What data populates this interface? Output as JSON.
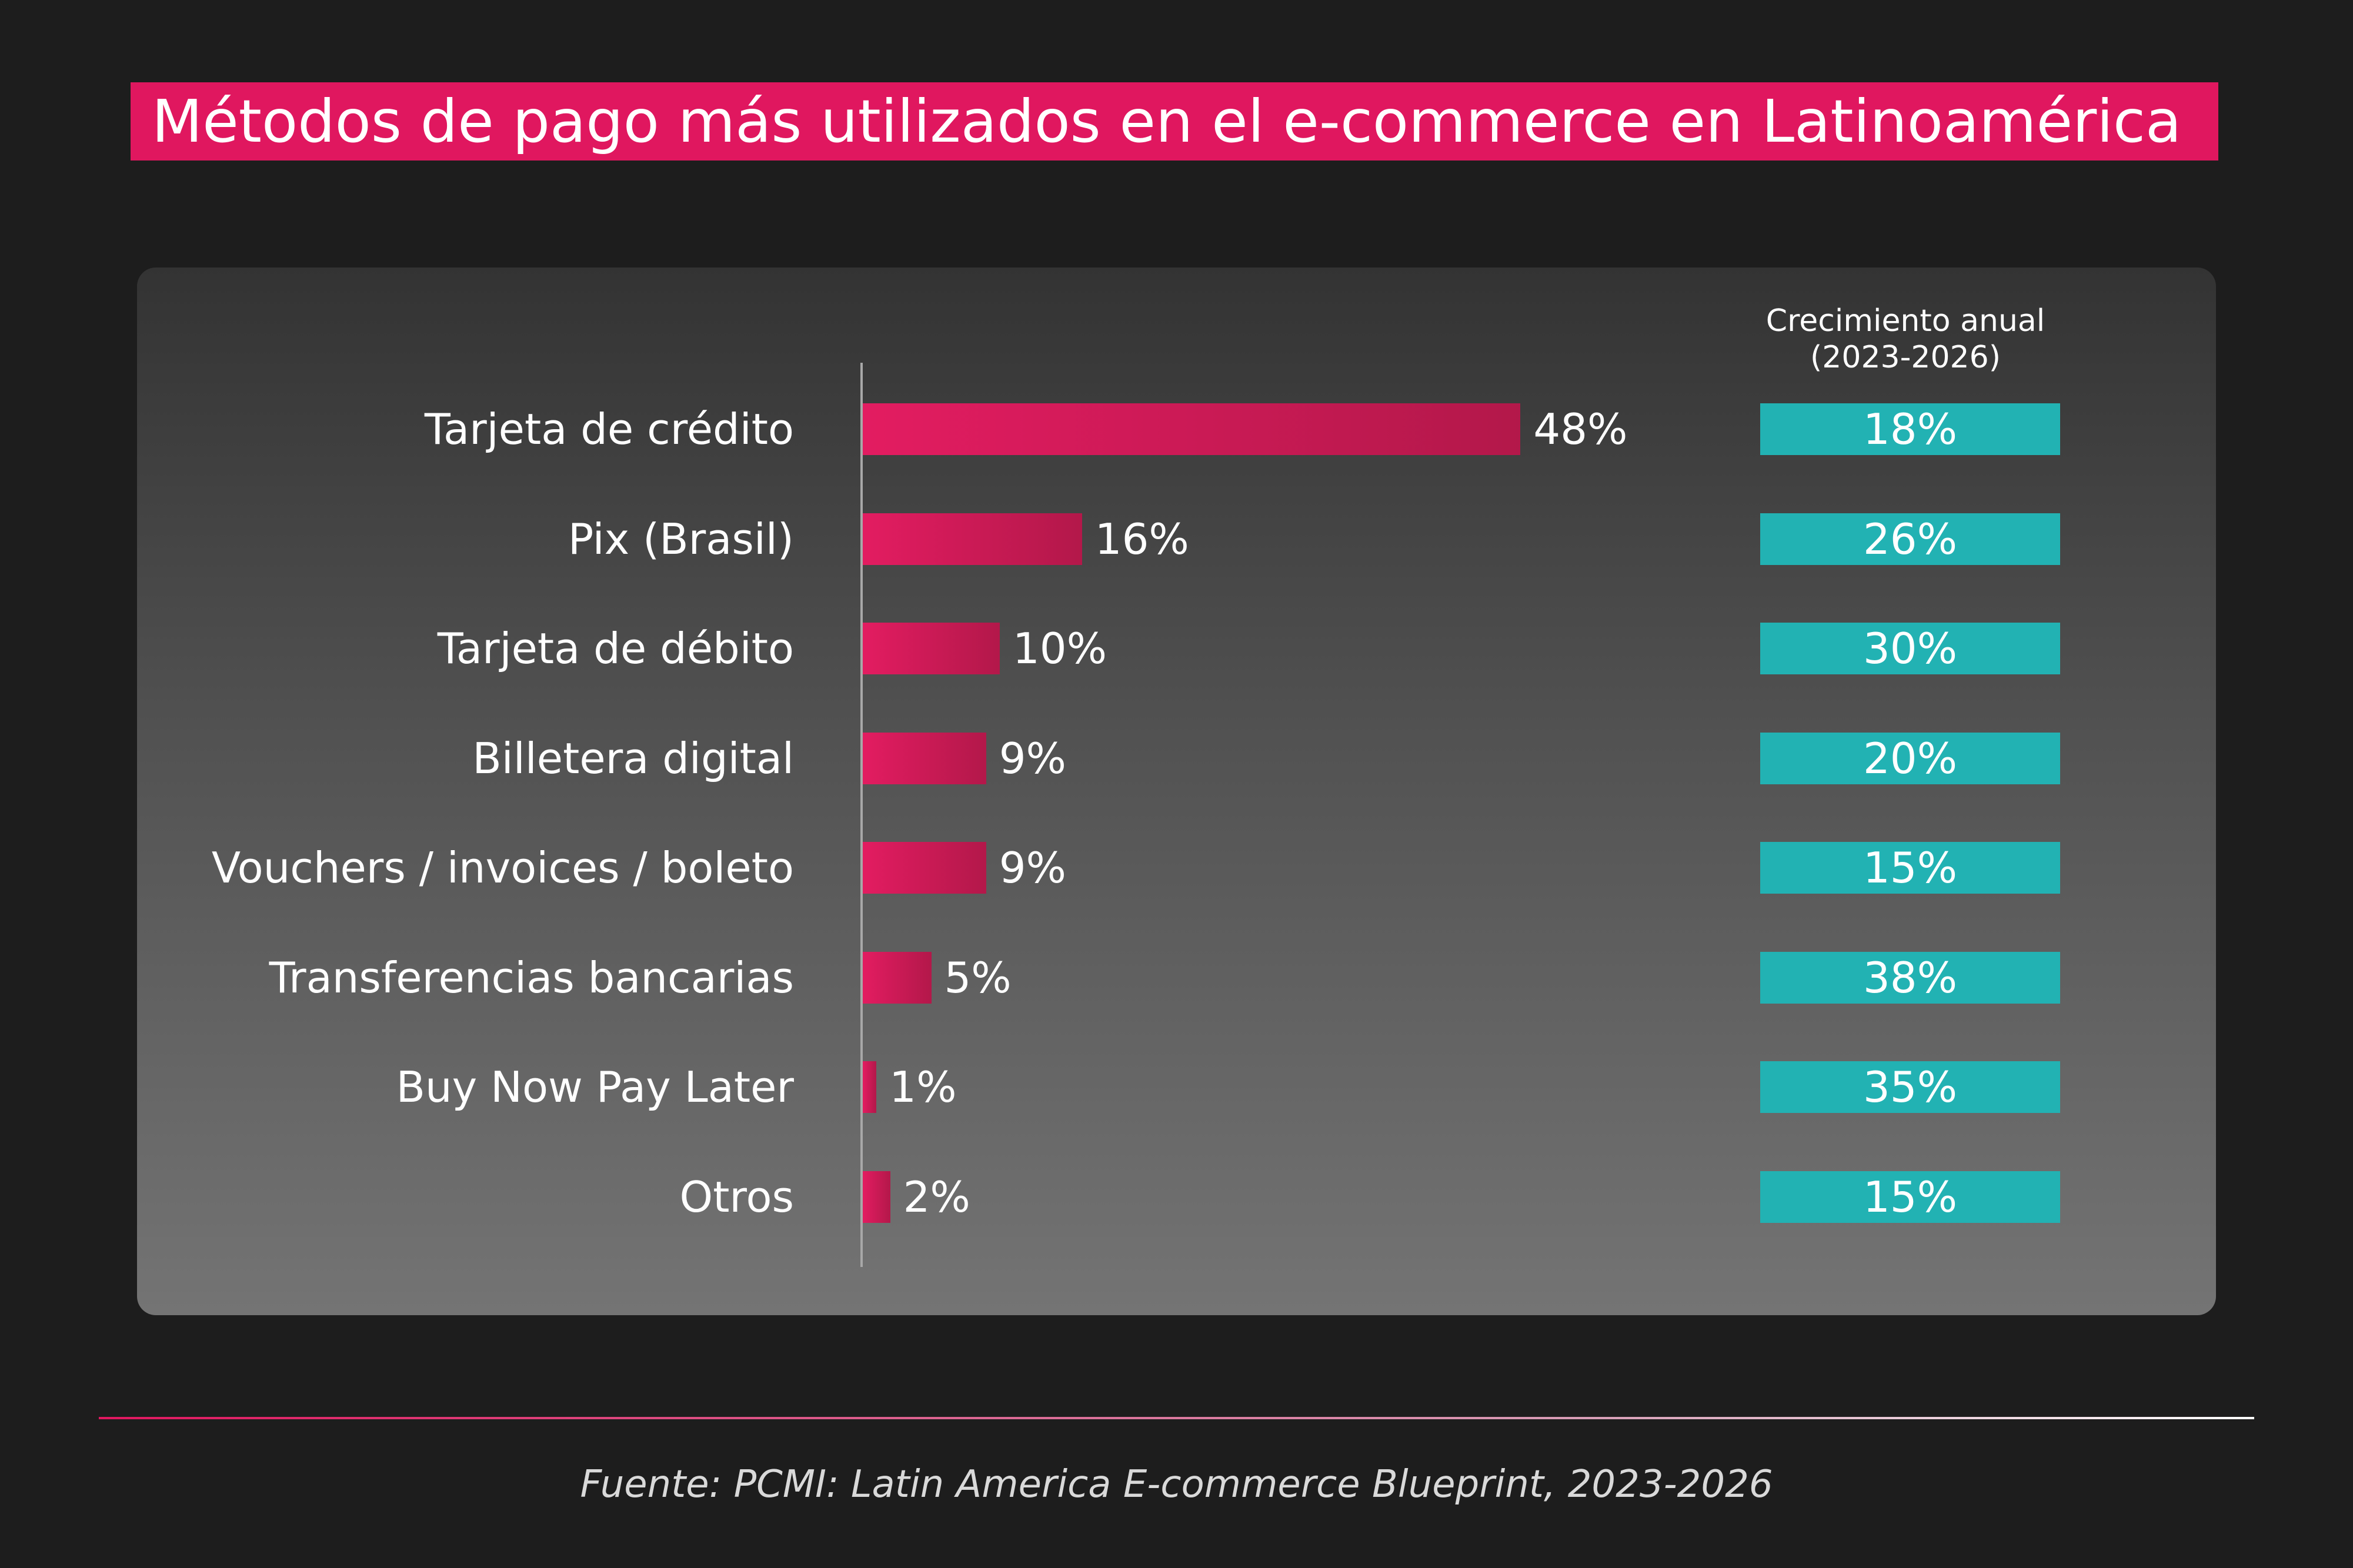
{
  "title": "Métodos de pago más utilizados en el e-commerce en Latinoamérica",
  "growth_header": {
    "line1": "Crecimiento anual",
    "line2": "(2023-2026)"
  },
  "source": "Fuente: PCMI: Latin America E-commerce Blueprint, 2023-2026",
  "colors": {
    "title_bg": "#e0175f",
    "bar": "#d01a58",
    "growth_box": "#22b2b3",
    "background": "#1d1d1d"
  },
  "chart_data": {
    "type": "bar",
    "orientation": "horizontal",
    "title": "Métodos de pago más utilizados en el e-commerce en Latinoamérica",
    "categories": [
      "Tarjeta de crédito",
      "Pix (Brasil)",
      "Tarjeta de débito",
      "Billetera digital",
      "Vouchers / invoices / boleto",
      "Transferencias bancarias",
      "Buy Now Pay Later",
      "Otros"
    ],
    "values": [
      48,
      16,
      10,
      9,
      9,
      5,
      1,
      2
    ],
    "value_labels": [
      "48%",
      "16%",
      "10%",
      "9%",
      "9%",
      "5%",
      "1%",
      "2%"
    ],
    "unit": "%",
    "xlim": [
      0,
      100
    ],
    "grid": false,
    "growth": {
      "name": "Crecimiento anual (2023-2026)",
      "values": [
        18,
        26,
        30,
        20,
        15,
        38,
        35,
        15
      ],
      "labels": [
        "18%",
        "26%",
        "30%",
        "20%",
        "15%",
        "38%",
        "35%",
        "15%"
      ]
    }
  }
}
